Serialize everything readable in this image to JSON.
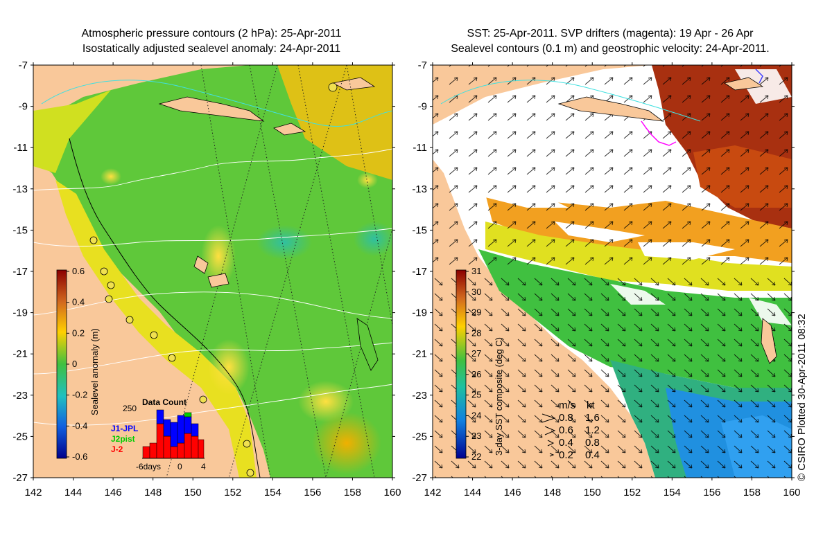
{
  "left_panel": {
    "title_line1": "Atmospheric pressure contours (2 hPa): 25-Apr-2011",
    "title_line2": "Isostatically adjusted sealevel anomaly: 24-Apr-2011",
    "colorbar": {
      "label": "Sealevel anomaly (m)",
      "ticks": [
        "0.6",
        "0.4",
        "0.2",
        "0",
        "-0.2",
        "-0.4",
        "-0.6"
      ]
    },
    "data_count": {
      "title": "Data Count",
      "ymax_label": "250",
      "x_labels": [
        "-6days",
        "0",
        "4"
      ],
      "legend": [
        {
          "label": "J1-JPL",
          "color": "#0000ff"
        },
        {
          "label": "J2pist",
          "color": "#00cc00"
        },
        {
          "label": "J-2",
          "color": "#ff0000"
        }
      ]
    }
  },
  "right_panel": {
    "title_line1": "SST: 25-Apr-2011. SVP drifters (magenta): 19 Apr - 26 Apr",
    "title_line2": "Sealevel contours (0.1 m) and geostrophic velocity: 24-Apr-2011.",
    "colorbar": {
      "label": "3-day SST composite (deg C)",
      "ticks": [
        "31",
        "30",
        "29",
        "28",
        "27",
        "26",
        "25",
        "24",
        "23",
        "22"
      ]
    },
    "velocity_key": {
      "header_ms": "m/s",
      "header_kt": "kt",
      "rows": [
        {
          "ms": "0.8",
          "kt": "1.6"
        },
        {
          "ms": "0.6",
          "kt": "1.2"
        },
        {
          "ms": "0.4",
          "kt": "0.8"
        },
        {
          "ms": "0.2",
          "kt": "0.4"
        }
      ]
    }
  },
  "axes": {
    "y_labels": [
      "-7",
      "-9",
      "-11",
      "-13",
      "-15",
      "-17",
      "-19",
      "-21",
      "-23",
      "-25",
      "-27"
    ],
    "x_labels": [
      "142",
      "144",
      "146",
      "148",
      "150",
      "152",
      "154",
      "156",
      "158",
      "160"
    ]
  },
  "copyright": "© CSIRO Plotted 30-Apr-2011 08:32",
  "colors": {
    "land": "#f9c89a",
    "sla_green": "#5fc83a",
    "sst_white": "#ffffff",
    "sst_hot": "#a83010"
  }
}
